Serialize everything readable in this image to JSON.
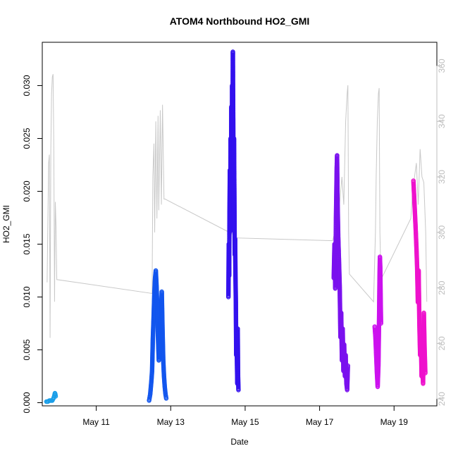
{
  "chart_data": {
    "type": "scatter",
    "title": "ATOM4 Northbound HO2_GMI",
    "xlabel": "Date",
    "ylabel": "HO2_GMI",
    "xlim": [
      9.55,
      20.15
    ],
    "ylim": [
      -0.0003,
      0.0341
    ],
    "y_ticks": [
      0.0,
      0.005,
      0.01,
      0.015,
      0.02,
      0.025,
      0.03
    ],
    "y_tick_labels": [
      "0.000",
      "0.005",
      "0.010",
      "0.015",
      "0.020",
      "0.025",
      "0.030"
    ],
    "x_ticks": [
      11,
      13,
      15,
      17,
      19
    ],
    "x_tick_labels": [
      "May 11",
      "May 13",
      "May 15",
      "May 17",
      "May 19"
    ],
    "y2_ticks": [
      240,
      260,
      280,
      300,
      320,
      340,
      360
    ],
    "y2_tick_labels": [
      "240",
      "260",
      "280",
      "300",
      "320",
      "340",
      "360"
    ],
    "y2lim": [
      237.5,
      368.5
    ],
    "grid": false,
    "series": [
      {
        "color": "#1a9ee8",
        "points": [
          [
            9.66,
            0.0001
          ],
          [
            9.7,
            0.0001
          ],
          [
            9.74,
            0.0002
          ],
          [
            9.78,
            0.0002
          ],
          [
            9.82,
            0.0002
          ],
          [
            9.85,
            0.0004
          ],
          [
            9.87,
            0.0006
          ],
          [
            9.89,
            0.0009
          ],
          [
            9.9,
            0.0008
          ],
          [
            9.91,
            0.0006
          ]
        ]
      },
      {
        "color": "#1155ee",
        "points": [
          [
            12.42,
            0.0002
          ],
          [
            12.45,
            0.0008
          ],
          [
            12.48,
            0.002
          ],
          [
            12.5,
            0.003
          ],
          [
            12.52,
            0.006
          ],
          [
            12.54,
            0.008
          ],
          [
            12.56,
            0.0103
          ],
          [
            12.58,
            0.0118
          ],
          [
            12.6,
            0.0125
          ],
          [
            12.62,
            0.011
          ],
          [
            12.64,
            0.009
          ],
          [
            12.66,
            0.006
          ],
          [
            12.68,
            0.004
          ],
          [
            12.7,
            0.0045
          ],
          [
            12.72,
            0.006
          ],
          [
            12.74,
            0.0085
          ],
          [
            12.76,
            0.0105
          ],
          [
            12.78,
            0.007
          ],
          [
            12.8,
            0.004
          ],
          [
            12.82,
            0.0025
          ],
          [
            12.84,
            0.0015
          ],
          [
            12.86,
            0.0008
          ],
          [
            12.88,
            0.0004
          ]
        ]
      },
      {
        "color": "#3311ee",
        "points": [
          [
            14.55,
            0.01
          ],
          [
            14.56,
            0.015
          ],
          [
            14.57,
            0.012
          ],
          [
            14.58,
            0.018
          ],
          [
            14.59,
            0.022
          ],
          [
            14.6,
            0.0162
          ],
          [
            14.61,
            0.025
          ],
          [
            14.62,
            0.0205
          ],
          [
            14.63,
            0.028
          ],
          [
            14.64,
            0.019
          ],
          [
            14.65,
            0.03
          ],
          [
            14.66,
            0.0228
          ],
          [
            14.67,
            0.0332
          ],
          [
            14.68,
            0.0265
          ],
          [
            14.69,
            0.018
          ],
          [
            14.7,
            0.025
          ],
          [
            14.71,
            0.02
          ],
          [
            14.72,
            0.014
          ],
          [
            14.73,
            0.0155
          ],
          [
            14.74,
            0.012
          ],
          [
            14.75,
            0.0096
          ],
          [
            14.76,
            0.0045
          ],
          [
            14.77,
            0.006
          ],
          [
            14.78,
            0.0038
          ],
          [
            14.79,
            0.0018
          ],
          [
            14.8,
            0.007
          ],
          [
            14.81,
            0.0025
          ],
          [
            14.82,
            0.0012
          ]
        ]
      },
      {
        "color": "#7a11ee",
        "points": [
          [
            17.38,
            0.0118
          ],
          [
            17.4,
            0.015
          ],
          [
            17.42,
            0.0108
          ],
          [
            17.44,
            0.0175
          ],
          [
            17.46,
            0.0222
          ],
          [
            17.47,
            0.0234
          ],
          [
            17.48,
            0.0195
          ],
          [
            17.5,
            0.0158
          ],
          [
            17.52,
            0.0135
          ],
          [
            17.54,
            0.011
          ],
          [
            17.56,
            0.0062
          ],
          [
            17.58,
            0.0085
          ],
          [
            17.6,
            0.004
          ],
          [
            17.62,
            0.007
          ],
          [
            17.64,
            0.003
          ],
          [
            17.66,
            0.0055
          ],
          [
            17.68,
            0.0025
          ],
          [
            17.7,
            0.0045
          ],
          [
            17.72,
            0.0018
          ],
          [
            17.74,
            0.0012
          ],
          [
            17.76,
            0.0035
          ]
        ]
      },
      {
        "color": "#cc11ee",
        "points": [
          [
            18.48,
            0.0072
          ],
          [
            18.5,
            0.0062
          ],
          [
            18.52,
            0.0045
          ],
          [
            18.54,
            0.0028
          ],
          [
            18.56,
            0.0015
          ],
          [
            18.58,
            0.0035
          ],
          [
            18.6,
            0.0085
          ],
          [
            18.61,
            0.0118
          ],
          [
            18.62,
            0.0138
          ],
          [
            18.63,
            0.0128
          ],
          [
            18.64,
            0.0098
          ],
          [
            18.65,
            0.0075
          ]
        ]
      },
      {
        "color": "#ee11cc",
        "points": [
          [
            19.52,
            0.021
          ],
          [
            19.54,
            0.0195
          ],
          [
            19.56,
            0.018
          ],
          [
            19.58,
            0.0165
          ],
          [
            19.6,
            0.0148
          ],
          [
            19.62,
            0.0128
          ],
          [
            19.64,
            0.0095
          ],
          [
            19.66,
            0.0125
          ],
          [
            19.68,
            0.0075
          ],
          [
            19.7,
            0.0045
          ],
          [
            19.72,
            0.0062
          ],
          [
            19.74,
            0.0025
          ],
          [
            19.76,
            0.0038
          ],
          [
            19.78,
            0.0018
          ],
          [
            19.8,
            0.0085
          ],
          [
            19.82,
            0.0052
          ],
          [
            19.84,
            0.0028
          ]
        ]
      }
    ],
    "secondary_series": {
      "color": "#c8c8c8",
      "axis": "right",
      "points": [
        [
          9.68,
          282
        ],
        [
          9.72,
          325
        ],
        [
          9.74,
          328
        ],
        [
          9.76,
          262
        ],
        [
          9.78,
          330
        ],
        [
          9.8,
          350
        ],
        [
          9.82,
          356
        ],
        [
          9.84,
          357
        ],
        [
          9.86,
          330
        ],
        [
          9.88,
          275
        ],
        [
          9.9,
          311
        ],
        [
          9.92,
          302
        ],
        [
          9.94,
          283
        ],
        [
          12.5,
          278
        ],
        [
          12.52,
          320
        ],
        [
          12.55,
          332
        ],
        [
          12.57,
          300
        ],
        [
          12.6,
          340
        ],
        [
          12.63,
          305
        ],
        [
          12.66,
          342
        ],
        [
          12.68,
          308
        ],
        [
          12.72,
          344
        ],
        [
          12.75,
          310
        ],
        [
          12.78,
          346
        ],
        [
          12.82,
          312
        ],
        [
          12.85,
          312
        ],
        [
          14.72,
          299
        ],
        [
          14.75,
          298
        ],
        [
          17.35,
          297
        ],
        [
          17.5,
          305
        ],
        [
          17.6,
          320
        ],
        [
          17.65,
          310
        ],
        [
          17.7,
          340
        ],
        [
          17.74,
          350
        ],
        [
          17.76,
          353
        ],
        [
          17.78,
          300
        ],
        [
          17.8,
          285
        ],
        [
          18.45,
          275
        ],
        [
          18.5,
          300
        ],
        [
          18.52,
          320
        ],
        [
          18.55,
          340
        ],
        [
          18.58,
          350
        ],
        [
          18.6,
          352
        ],
        [
          18.62,
          300
        ],
        [
          18.65,
          283
        ],
        [
          19.45,
          305
        ],
        [
          19.5,
          315
        ],
        [
          19.55,
          320
        ],
        [
          19.6,
          325
        ],
        [
          19.65,
          310
        ],
        [
          19.7,
          330
        ],
        [
          19.75,
          320
        ],
        [
          19.8,
          318
        ],
        [
          19.85,
          300
        ],
        [
          19.88,
          275
        ]
      ]
    }
  }
}
